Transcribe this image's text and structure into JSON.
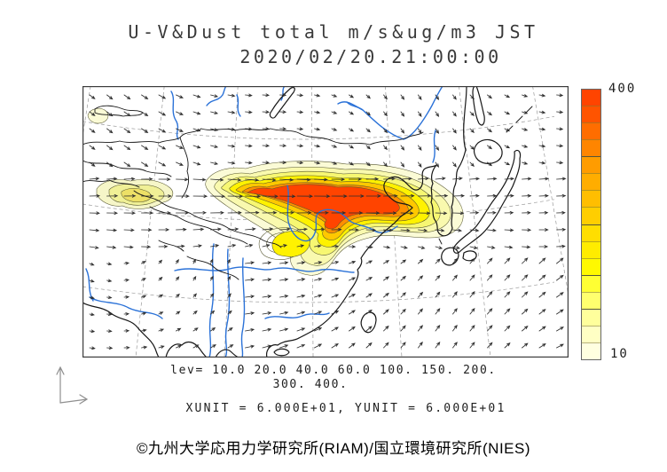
{
  "title": {
    "line1": "U-V&Dust total m/s&ug/m3 JST",
    "line2": "2020/02/20.21:00:00"
  },
  "legend": {
    "lev_line1": "lev= 10.0 20.0 40.0 60.0 100. 150. 200.",
    "lev_line2": "300. 400.",
    "units_line": "XUNIT = 6.000E+01, YUNIT = 6.000E+01"
  },
  "colorbar": {
    "max_label": "400",
    "min_label": "10",
    "levels": [
      10,
      20,
      40,
      60,
      100,
      150,
      200,
      300,
      400
    ],
    "colors": [
      "#FF4400",
      "#FF5400",
      "#FF6D00",
      "#FF8500",
      "#FF9C00",
      "#FFAD00",
      "#FFBE00",
      "#FFCE00",
      "#FFDE00",
      "#FFEC00",
      "#FFF900",
      "#FFFF33",
      "#FFFF6E",
      "#FFFF9C",
      "#FFFFC4",
      "#FFFFE0"
    ]
  },
  "footer": {
    "credit": "©九州大学応用力学研究所(RIAM)/国立環境研究所(NIES)"
  },
  "map": {
    "colors": {
      "river": "#2B72D8",
      "coast": "#161616",
      "graticule": "#9a9a9a",
      "arrow": "#2d2d2d",
      "plume_levels": [
        "#FBFBD6",
        "#F9F9AE",
        "#F7F772",
        "#FFF200",
        "#FFC800",
        "#FF8F00",
        "#FF4400"
      ],
      "plume_west": [
        "#F6F6C8",
        "#F0F096",
        "#EDE066"
      ]
    }
  }
}
